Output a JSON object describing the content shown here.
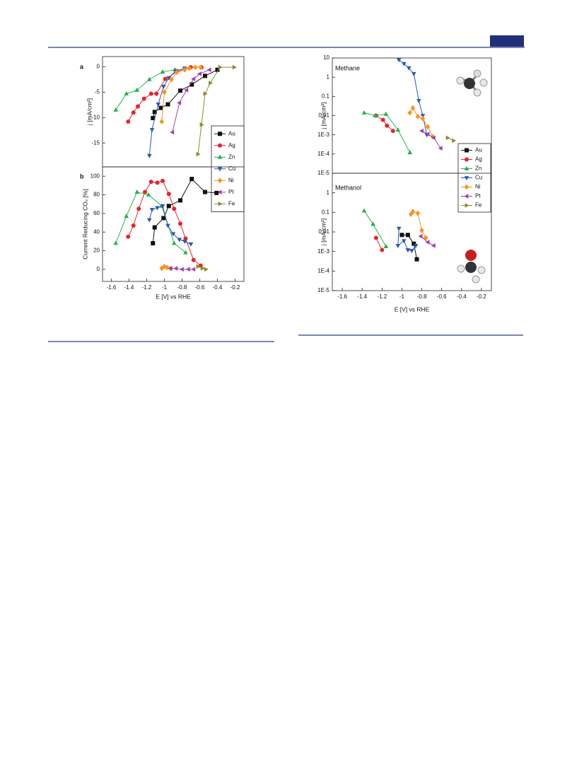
{
  "chart_data": [
    {
      "type": "scatter-line",
      "panel_label": "a",
      "y_label": "j [mA/cm²]",
      "xlim": [
        -1.7,
        -0.1
      ],
      "ylim": [
        -19.7,
        2
      ],
      "yticks": [
        0,
        -5,
        -10,
        -15
      ],
      "legend": "lower right",
      "series": [
        {
          "name": "Au",
          "color": "#111111",
          "marker": "square",
          "x": [
            -1.13,
            -1.11,
            -1.04,
            -0.96,
            -0.82,
            -0.69,
            -0.54,
            -0.4
          ],
          "values": [
            -10.1,
            -8.9,
            -8.1,
            -7.4,
            -4.7,
            -3.5,
            -1.8,
            -0.6
          ]
        },
        {
          "name": "Ag",
          "color": "#e8242a",
          "marker": "circle",
          "x": [
            -1.41,
            -1.35,
            -1.3,
            -1.23,
            -1.15,
            -1.09,
            -0.99,
            -0.86,
            -0.7,
            -0.58
          ],
          "values": [
            -10.8,
            -9,
            -7.8,
            -6.3,
            -5.3,
            -5.3,
            -2.4,
            -1,
            -0.1,
            -0.1
          ]
        },
        {
          "name": "Zn",
          "color": "#22b24c",
          "marker": "triangle-up",
          "x": [
            -1.55,
            -1.43,
            -1.31,
            -1.17,
            -1.02,
            -0.88
          ],
          "values": [
            -8.5,
            -5.3,
            -4.6,
            -2.5,
            -1,
            -0.6
          ]
        },
        {
          "name": "Cu",
          "color": "#2858b8",
          "marker": "triangle-down",
          "x": [
            -1.17,
            -1.14,
            -1.07,
            -1.01,
            -0.95,
            -0.87,
            -0.77
          ],
          "values": [
            -17.5,
            -12.4,
            -7.4,
            -3.9,
            -2.2,
            -0.8,
            -0.3
          ]
        },
        {
          "name": "Ni",
          "color": "#f7941d",
          "marker": "diamond",
          "x": [
            -1.03,
            -1,
            -0.92,
            -0.86,
            -0.77,
            -0.72,
            -0.65,
            -0.59
          ],
          "values": [
            -10.8,
            -5,
            -2.5,
            -1.1,
            -0.6,
            -0.3,
            -0.1,
            -0.1
          ]
        },
        {
          "name": "Pt",
          "color": "#a23fb0",
          "marker": "triangle-left",
          "x": [
            -0.91,
            -0.83,
            -0.75,
            -0.67,
            -0.6,
            -0.49
          ],
          "values": [
            -12.9,
            -7.1,
            -4.6,
            -2.4,
            -1.4,
            -0.6
          ]
        },
        {
          "name": "Fe",
          "color": "#8c8c2a",
          "marker": "triangle-right",
          "x": [
            -0.62,
            -0.58,
            -0.54,
            -0.48,
            -0.37,
            -0.21
          ],
          "values": [
            -17.2,
            -11.4,
            -5.3,
            -3.2,
            -0.1,
            -0.1
          ]
        }
      ]
    },
    {
      "type": "scatter-line",
      "panel_label": "b",
      "y_label": "Current Reducing CO₂ [%]",
      "x_label": "E [V] vs RHE",
      "xlim": [
        -1.7,
        -0.1
      ],
      "xticks": [
        -1.6,
        -1.4,
        -1.2,
        -1,
        -0.8,
        -0.6,
        -0.4,
        -0.2
      ],
      "ylim": [
        -13,
        110
      ],
      "yticks": [
        0,
        20,
        40,
        60,
        80,
        100
      ],
      "series": [
        {
          "color": "#111111",
          "marker": "square",
          "x": [
            -1.13,
            -1.11,
            -1.01,
            -0.95,
            -0.82,
            -0.69,
            -0.54,
            -0.41
          ],
          "values": [
            28,
            45,
            55,
            68,
            74,
            97,
            83,
            82
          ]
        },
        {
          "color": "#e8242a",
          "marker": "circle",
          "x": [
            -1.41,
            -1.35,
            -1.29,
            -1.22,
            -1.15,
            -1.08,
            -1.02,
            -0.95,
            -0.89,
            -0.82,
            -0.76,
            -0.67,
            -0.59
          ],
          "values": [
            35,
            47,
            65,
            83,
            94,
            93,
            95,
            81,
            65,
            49,
            33,
            10,
            4
          ]
        },
        {
          "color": "#22b24c",
          "marker": "triangle-up",
          "x": [
            -1.55,
            -1.43,
            -1.31,
            -1.18,
            -1.03,
            -0.89,
            -0.76
          ],
          "values": [
            28,
            57,
            83,
            80,
            68,
            28,
            18
          ]
        },
        {
          "color": "#2858b8",
          "marker": "triangle-down",
          "x": [
            -1.17,
            -1.14,
            -1.08,
            -1.02,
            -0.96,
            -0.9,
            -0.83,
            -0.77,
            -0.7
          ],
          "values": [
            53,
            64,
            66,
            68,
            47,
            38,
            32,
            30,
            27
          ]
        },
        {
          "color": "#f7941d",
          "marker": "diamond",
          "x": [
            -1.03,
            -1,
            -0.97,
            -0.93
          ],
          "values": [
            1,
            3,
            2,
            1
          ]
        },
        {
          "color": "#a23fb0",
          "marker": "triangle-left",
          "x": [
            -0.93,
            -0.87,
            -0.8,
            -0.73,
            -0.67
          ],
          "values": [
            1,
            1,
            0,
            0,
            0
          ]
        },
        {
          "color": "#8c8c2a",
          "marker": "triangle-right",
          "x": [
            -0.62,
            -0.57,
            -0.53
          ],
          "values": [
            3,
            1,
            0
          ]
        }
      ]
    },
    {
      "type": "scatter-line",
      "panel_label": "Methane",
      "y_label": "j [mA/cm²]",
      "yscale": "log",
      "xlim": [
        -1.7,
        -0.1
      ],
      "ylim": [
        1e-05,
        10
      ],
      "yticks": [
        10,
        1,
        0.1,
        0.01,
        {
          "value": 0.001,
          "label": "1E-3"
        },
        {
          "value": 0.0001,
          "label": "1E-4"
        },
        {
          "value": 1e-05,
          "label": "1E-5"
        }
      ],
      "legend": "lower right",
      "series": [
        {
          "name": "Au",
          "color": "#111111",
          "marker": "square",
          "x": [],
          "values": []
        },
        {
          "name": "Ag",
          "color": "#e8242a",
          "marker": "circle",
          "x": [
            -1.26,
            -1.19,
            -1.15,
            -1.09
          ],
          "values": [
            0.01,
            0.006,
            0.003,
            0.0016
          ]
        },
        {
          "name": "Zn",
          "color": "#22b24c",
          "marker": "triangle-up",
          "x": [
            -1.38,
            -1.27,
            -1.16,
            -1.04,
            -0.92
          ],
          "values": [
            0.014,
            0.01,
            0.012,
            0.0018,
            0.00012
          ]
        },
        {
          "name": "Cu",
          "color": "#2858b8",
          "marker": "triangle-down",
          "x": [
            -1.03,
            -0.98,
            -0.93,
            -0.88,
            -0.83,
            -0.79,
            -0.75
          ],
          "values": [
            8,
            5,
            3,
            1.5,
            0.06,
            0.01,
            0.001
          ]
        },
        {
          "name": "Ni",
          "color": "#f7941d",
          "marker": "diamond",
          "x": [
            -0.92,
            -0.89,
            -0.84,
            -0.79,
            -0.74,
            -0.69
          ],
          "values": [
            0.014,
            0.025,
            0.009,
            0.007,
            0.0026,
            0.0008
          ]
        },
        {
          "name": "Pt",
          "color": "#a23fb0",
          "marker": "triangle-left",
          "x": [
            -0.8,
            -0.74,
            -0.68,
            -0.61
          ],
          "values": [
            0.0016,
            0.0011,
            0.0007,
            0.0002
          ]
        },
        {
          "name": "Fe",
          "color": "#8c8c2a",
          "marker": "triangle-right",
          "x": [
            -0.54,
            -0.48
          ],
          "values": [
            0.0007,
            0.0005
          ]
        }
      ]
    },
    {
      "type": "scatter-line",
      "panel_label": "Methanol",
      "y_label": "j [mA/cm²]",
      "x_label": "E [V] vs RHE",
      "yscale": "log",
      "xlim": [
        -1.7,
        -0.1
      ],
      "xticks": [
        -1.6,
        -1.4,
        -1.2,
        -1,
        -0.8,
        -0.6,
        -0.4,
        -0.2
      ],
      "ylim": [
        1e-05,
        10
      ],
      "yticks": [
        1,
        0.1,
        0.01,
        {
          "value": 0.001,
          "label": "1E-3"
        },
        {
          "value": 0.0001,
          "label": "1E-4"
        },
        {
          "value": 1e-05,
          "label": "1E-5"
        }
      ],
      "series": [
        {
          "color": "#111111",
          "marker": "square",
          "x": [
            -1,
            -0.94,
            -0.88,
            -0.85
          ],
          "values": [
            0.007,
            0.007,
            0.0025,
            0.0004
          ]
        },
        {
          "color": "#e8242a",
          "marker": "circle",
          "x": [
            -1.26,
            -1.2
          ],
          "values": [
            0.005,
            0.0012
          ]
        },
        {
          "color": "#22b24c",
          "marker": "triangle-up",
          "x": [
            -1.38,
            -1.29,
            -1.16
          ],
          "values": [
            0.12,
            0.025,
            0.0018
          ]
        },
        {
          "color": "#2858b8",
          "marker": "triangle-down",
          "x": [
            -1.03,
            -1.04,
            -0.98,
            -0.94,
            -0.9,
            -0.86
          ],
          "values": [
            0.015,
            0.002,
            0.0035,
            0.0012,
            0.0011,
            0.002
          ]
        },
        {
          "color": "#f7941d",
          "marker": "diamond",
          "x": [
            -0.91,
            -0.89,
            -0.84,
            -0.8,
            -0.76
          ],
          "values": [
            0.08,
            0.11,
            0.09,
            0.012,
            0.005
          ]
        },
        {
          "color": "#a23fb0",
          "marker": "triangle-left",
          "x": [
            -0.81,
            -0.74,
            -0.68
          ],
          "values": [
            0.006,
            0.003,
            0.002
          ]
        }
      ]
    }
  ]
}
